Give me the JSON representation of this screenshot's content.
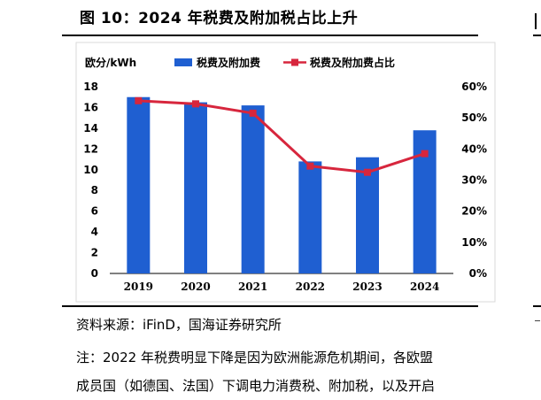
{
  "figure": {
    "title": "图 10：2024 年税费及附加税占比上升"
  },
  "chart_data": {
    "type": "bar",
    "categories": [
      "2019",
      "2020",
      "2021",
      "2022",
      "2023",
      "2024"
    ],
    "series": [
      {
        "name": "税费及附加费",
        "kind": "bar",
        "axis": "left",
        "color": "#1f5fd1",
        "values": [
          17.0,
          16.5,
          16.2,
          10.8,
          11.2,
          13.8
        ]
      },
      {
        "name": "税费及附加费占比",
        "kind": "line",
        "axis": "right",
        "color": "#d7263d",
        "values": [
          55.5,
          54.5,
          51.5,
          34.5,
          32.5,
          38.5
        ]
      }
    ],
    "left_axis": {
      "label": "欧分/kWh",
      "min": 0,
      "max": 18,
      "ticks": [
        "0",
        "2",
        "4",
        "6",
        "8",
        "10",
        "12",
        "14",
        "16",
        "18"
      ]
    },
    "right_axis": {
      "min": 0,
      "max": 60,
      "ticks": [
        "0%",
        "10%",
        "20%",
        "30%",
        "40%",
        "50%",
        "60%"
      ]
    },
    "legend_placement": "top",
    "grid": false
  },
  "footer": {
    "source": "资料来源：iFinD，国海证券研究所",
    "note_line1": "注：2022 年税费明显下降是因为欧洲能源危机期间，各欧盟",
    "note_line2": "成员国（如德国、法国）下调电力消费税、附加税，以及开启"
  }
}
